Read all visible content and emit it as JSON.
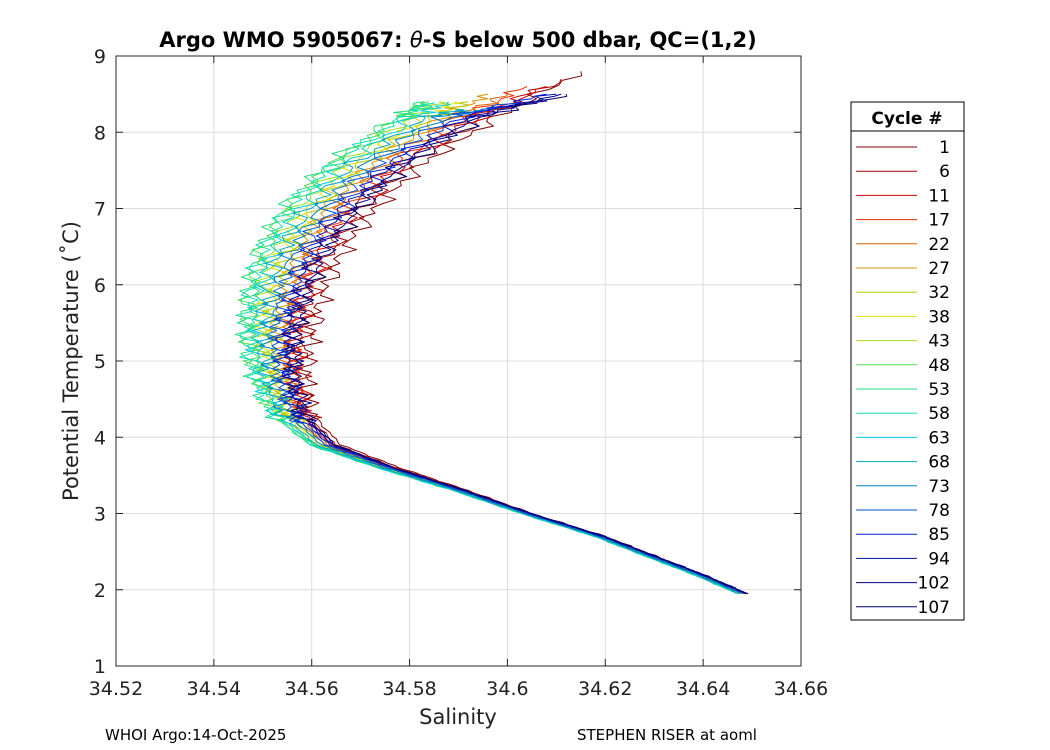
{
  "chart_data": {
    "type": "line",
    "title_prefix": "Argo WMO 5905067: ",
    "title_theta": "θ",
    "title_suffix": "-S below 500 dbar,  QC=(1,2)",
    "xlabel": "Salinity",
    "ylabel": "Potential Temperature (˚C)",
    "xlim": [
      34.52,
      34.66
    ],
    "ylim": [
      1,
      9
    ],
    "xticks": [
      34.52,
      34.54,
      34.56,
      34.58,
      34.6,
      34.62,
      34.64,
      34.66
    ],
    "xtick_labels": [
      "34.52",
      "34.54",
      "34.56",
      "34.58",
      "34.6",
      "34.62",
      "34.64",
      "34.66"
    ],
    "yticks": [
      1,
      2,
      3,
      4,
      5,
      6,
      7,
      8,
      9
    ],
    "ytick_labels": [
      "1",
      "2",
      "3",
      "4",
      "5",
      "6",
      "7",
      "8",
      "9"
    ],
    "grid": true,
    "legend_title": "Cycle #",
    "legend_position": "right-outside",
    "series": [
      {
        "name": "1",
        "color": "#800000",
        "salinity": [
          34.649,
          34.64,
          34.63,
          34.62,
          34.605,
          34.592,
          34.578,
          34.566,
          34.56,
          34.559,
          34.56,
          34.562,
          34.566,
          34.573,
          34.583,
          34.598,
          34.615
        ],
        "theta": [
          1.95,
          2.2,
          2.45,
          2.7,
          3.0,
          3.3,
          3.6,
          3.9,
          4.3,
          4.8,
          5.3,
          5.8,
          6.4,
          7.0,
          7.6,
          8.2,
          8.8
        ]
      },
      {
        "name": "6",
        "color": "#aa0000",
        "salinity": [
          34.6488,
          34.6398,
          34.6297,
          34.6197,
          34.6047,
          34.5915,
          34.5772,
          34.565,
          34.559,
          34.5575,
          34.558,
          34.5598,
          34.5636,
          34.5706,
          34.5806,
          34.5956,
          34.611
        ],
        "theta": [
          1.95,
          2.2,
          2.45,
          2.7,
          3.0,
          3.3,
          3.6,
          3.9,
          4.3,
          4.8,
          5.3,
          5.8,
          6.4,
          7.0,
          7.6,
          8.2,
          8.7
        ]
      },
      {
        "name": "11",
        "color": "#d40000",
        "salinity": [
          34.6486,
          34.6396,
          34.6294,
          34.6194,
          34.6044,
          34.591,
          34.5765,
          34.5642,
          34.5582,
          34.5565,
          34.5568,
          34.5584,
          34.562,
          34.5688,
          34.5786,
          34.5934,
          34.608
        ],
        "theta": [
          1.95,
          2.2,
          2.45,
          2.7,
          3.0,
          3.3,
          3.6,
          3.9,
          4.3,
          4.8,
          5.3,
          5.8,
          6.4,
          7.0,
          7.6,
          8.2,
          8.6
        ]
      },
      {
        "name": "17",
        "color": "#e83000",
        "salinity": [
          34.6484,
          34.6394,
          34.6292,
          34.6192,
          34.6042,
          34.5908,
          34.5762,
          34.5638,
          34.5576,
          34.5556,
          34.5556,
          34.557,
          34.5604,
          34.567,
          34.5768,
          34.5914,
          34.604
        ],
        "theta": [
          1.95,
          2.2,
          2.45,
          2.7,
          3.0,
          3.3,
          3.6,
          3.9,
          4.3,
          4.8,
          5.3,
          5.8,
          6.4,
          7.0,
          7.6,
          8.2,
          8.6
        ]
      },
      {
        "name": "22",
        "color": "#e06000",
        "salinity": [
          34.6482,
          34.6392,
          34.629,
          34.619,
          34.604,
          34.5905,
          34.5758,
          34.5632,
          34.5568,
          34.5546,
          34.5542,
          34.5554,
          34.5586,
          34.565,
          34.5748,
          34.5894,
          34.6
        ],
        "theta": [
          1.95,
          2.2,
          2.45,
          2.7,
          3.0,
          3.3,
          3.6,
          3.9,
          4.3,
          4.8,
          5.3,
          5.8,
          6.4,
          7.0,
          7.6,
          8.2,
          8.5
        ]
      },
      {
        "name": "27",
        "color": "#d99000",
        "salinity": [
          34.648,
          34.639,
          34.6288,
          34.6188,
          34.6038,
          34.5902,
          34.5754,
          34.5626,
          34.556,
          34.5536,
          34.553,
          34.554,
          34.557,
          34.5632,
          34.5728,
          34.5872,
          34.596
        ],
        "theta": [
          1.95,
          2.2,
          2.45,
          2.7,
          3.0,
          3.3,
          3.6,
          3.9,
          4.3,
          4.8,
          5.3,
          5.8,
          6.4,
          7.0,
          7.6,
          8.2,
          8.5
        ]
      },
      {
        "name": "32",
        "color": "#b8c800",
        "salinity": [
          34.6478,
          34.6388,
          34.6286,
          34.6186,
          34.6036,
          34.59,
          34.575,
          34.562,
          34.5552,
          34.5526,
          34.5518,
          34.5526,
          34.5554,
          34.5614,
          34.5708,
          34.585,
          34.592
        ],
        "theta": [
          1.95,
          2.2,
          2.45,
          2.7,
          3.0,
          3.3,
          3.6,
          3.9,
          4.3,
          4.8,
          5.3,
          5.8,
          6.4,
          7.0,
          7.6,
          8.2,
          8.4
        ]
      },
      {
        "name": "38",
        "color": "#e0e000",
        "salinity": [
          34.6476,
          34.6386,
          34.6284,
          34.6184,
          34.6034,
          34.5898,
          34.5746,
          34.5614,
          34.5544,
          34.5515,
          34.5504,
          34.551,
          34.5536,
          34.5594,
          34.5688,
          34.5828,
          34.589
        ],
        "theta": [
          1.95,
          2.2,
          2.45,
          2.7,
          3.0,
          3.3,
          3.6,
          3.9,
          4.3,
          4.8,
          5.3,
          5.8,
          6.4,
          7.0,
          7.6,
          8.2,
          8.4
        ]
      },
      {
        "name": "43",
        "color": "#a0e020",
        "salinity": [
          34.6474,
          34.6384,
          34.6282,
          34.6182,
          34.6032,
          34.5895,
          34.5742,
          34.5608,
          34.5535,
          34.5502,
          34.5488,
          34.5492,
          34.5516,
          34.5572,
          34.5666,
          34.5806,
          34.586
        ],
        "theta": [
          1.95,
          2.2,
          2.45,
          2.7,
          3.0,
          3.3,
          3.6,
          3.9,
          4.3,
          4.8,
          5.3,
          5.8,
          6.4,
          7.0,
          7.6,
          8.2,
          8.4
        ]
      },
      {
        "name": "48",
        "color": "#50e050",
        "salinity": [
          34.6472,
          34.6382,
          34.628,
          34.618,
          34.603,
          34.5892,
          34.5738,
          34.5602,
          34.5526,
          34.549,
          34.5472,
          34.5474,
          34.5496,
          34.555,
          34.5644,
          34.5784,
          34.584
        ],
        "theta": [
          1.95,
          2.2,
          2.45,
          2.7,
          3.0,
          3.3,
          3.6,
          3.9,
          4.3,
          4.8,
          5.3,
          5.8,
          6.4,
          7.0,
          7.6,
          8.2,
          8.4
        ]
      },
      {
        "name": "53",
        "color": "#20e080",
        "salinity": [
          34.647,
          34.638,
          34.6278,
          34.6178,
          34.6028,
          34.589,
          34.5734,
          34.5596,
          34.5518,
          34.548,
          34.5462,
          34.5464,
          34.5486,
          34.554,
          34.5636,
          34.5776,
          34.583
        ],
        "theta": [
          1.95,
          2.2,
          2.45,
          2.7,
          3.0,
          3.3,
          3.6,
          3.9,
          4.3,
          4.8,
          5.3,
          5.8,
          6.4,
          7.0,
          7.6,
          8.2,
          8.4
        ]
      },
      {
        "name": "58",
        "color": "#10e0b0",
        "salinity": [
          34.647,
          34.638,
          34.6278,
          34.6178,
          34.6028,
          34.589,
          34.5734,
          34.5598,
          34.552,
          34.5484,
          34.5468,
          34.5472,
          34.5496,
          34.5552,
          34.5648,
          34.579,
          34.585
        ],
        "theta": [
          1.95,
          2.2,
          2.45,
          2.7,
          3.0,
          3.3,
          3.6,
          3.9,
          4.3,
          4.8,
          5.3,
          5.8,
          6.4,
          7.0,
          7.6,
          8.2,
          8.4
        ]
      },
      {
        "name": "63",
        "color": "#00d0e0",
        "salinity": [
          34.6472,
          34.6382,
          34.628,
          34.618,
          34.603,
          34.5892,
          34.5738,
          34.5604,
          34.553,
          34.5496,
          34.5484,
          34.549,
          34.5516,
          34.5574,
          34.567,
          34.5812,
          34.588
        ],
        "theta": [
          1.95,
          2.2,
          2.45,
          2.7,
          3.0,
          3.3,
          3.6,
          3.9,
          4.3,
          4.8,
          5.3,
          5.8,
          6.4,
          7.0,
          7.6,
          8.2,
          8.4
        ]
      },
      {
        "name": "68",
        "color": "#00a8c8",
        "salinity": [
          34.6474,
          34.6384,
          34.6282,
          34.6182,
          34.6032,
          34.5895,
          34.5742,
          34.561,
          34.5538,
          34.5508,
          34.5498,
          34.5506,
          34.5534,
          34.5594,
          34.569,
          34.5834,
          34.591
        ],
        "theta": [
          1.95,
          2.2,
          2.45,
          2.7,
          3.0,
          3.3,
          3.6,
          3.9,
          4.3,
          4.8,
          5.3,
          5.8,
          6.4,
          7.0,
          7.6,
          8.2,
          8.3
        ]
      },
      {
        "name": "73",
        "color": "#0080c0",
        "salinity": [
          34.6478,
          34.6388,
          34.6286,
          34.6186,
          34.6036,
          34.59,
          34.575,
          34.562,
          34.555,
          34.5522,
          34.5514,
          34.5524,
          34.5554,
          34.5616,
          34.5714,
          34.586,
          34.596
        ],
        "theta": [
          1.95,
          2.2,
          2.45,
          2.7,
          3.0,
          3.3,
          3.6,
          3.9,
          4.3,
          4.8,
          5.3,
          5.8,
          6.4,
          7.0,
          7.6,
          8.2,
          8.3
        ]
      },
      {
        "name": "78",
        "color": "#0050d8",
        "salinity": [
          34.6482,
          34.6392,
          34.629,
          34.619,
          34.604,
          34.5905,
          34.5756,
          34.5628,
          34.556,
          34.5534,
          34.5528,
          34.554,
          34.5572,
          34.5636,
          34.5736,
          34.5884,
          34.602
        ],
        "theta": [
          1.95,
          2.2,
          2.45,
          2.7,
          3.0,
          3.3,
          3.6,
          3.9,
          4.3,
          4.8,
          5.3,
          5.8,
          6.4,
          7.0,
          7.6,
          8.2,
          8.4
        ]
      },
      {
        "name": "85",
        "color": "#0020e0",
        "salinity": [
          34.6486,
          34.6396,
          34.6294,
          34.6194,
          34.6044,
          34.591,
          34.5762,
          34.5636,
          34.557,
          34.5546,
          34.5542,
          34.5556,
          34.559,
          34.5656,
          34.5758,
          34.5908,
          34.608
        ],
        "theta": [
          1.95,
          2.2,
          2.45,
          2.7,
          3.0,
          3.3,
          3.6,
          3.9,
          4.3,
          4.8,
          5.3,
          5.8,
          6.4,
          7.0,
          7.6,
          8.2,
          8.5
        ]
      },
      {
        "name": "94",
        "color": "#0010b0",
        "salinity": [
          34.6488,
          34.6398,
          34.6296,
          34.6196,
          34.6046,
          34.5912,
          34.5766,
          34.5642,
          34.5576,
          34.5554,
          34.5552,
          34.5566,
          34.5602,
          34.567,
          34.5772,
          34.5922,
          34.61
        ],
        "theta": [
          1.95,
          2.2,
          2.45,
          2.7,
          3.0,
          3.3,
          3.6,
          3.9,
          4.3,
          4.8,
          5.3,
          5.8,
          6.4,
          7.0,
          7.6,
          8.2,
          8.5
        ]
      },
      {
        "name": "102",
        "color": "#000090",
        "salinity": [
          34.649,
          34.64,
          34.6298,
          34.6198,
          34.6048,
          34.5914,
          34.5768,
          34.5646,
          34.558,
          34.556,
          34.556,
          34.5576,
          34.5614,
          34.5684,
          34.5786,
          34.5936,
          34.611
        ],
        "theta": [
          1.95,
          2.2,
          2.45,
          2.7,
          3.0,
          3.3,
          3.6,
          3.9,
          4.3,
          4.8,
          5.3,
          5.8,
          6.4,
          7.0,
          7.6,
          8.2,
          8.5
        ]
      },
      {
        "name": "107",
        "color": "#000070",
        "salinity": [
          34.649,
          34.64,
          34.6298,
          34.6198,
          34.6048,
          34.5914,
          34.5768,
          34.5648,
          34.5584,
          34.5566,
          34.5568,
          34.5586,
          34.5626,
          34.5698,
          34.58,
          34.595,
          34.612
        ],
        "theta": [
          1.95,
          2.2,
          2.45,
          2.7,
          3.0,
          3.3,
          3.6,
          3.9,
          4.3,
          4.8,
          5.3,
          5.8,
          6.4,
          7.0,
          7.6,
          8.2,
          8.5
        ]
      }
    ]
  },
  "footer": {
    "left": "WHOI Argo:14-Oct-2025",
    "right": "STEPHEN RISER at aoml"
  }
}
